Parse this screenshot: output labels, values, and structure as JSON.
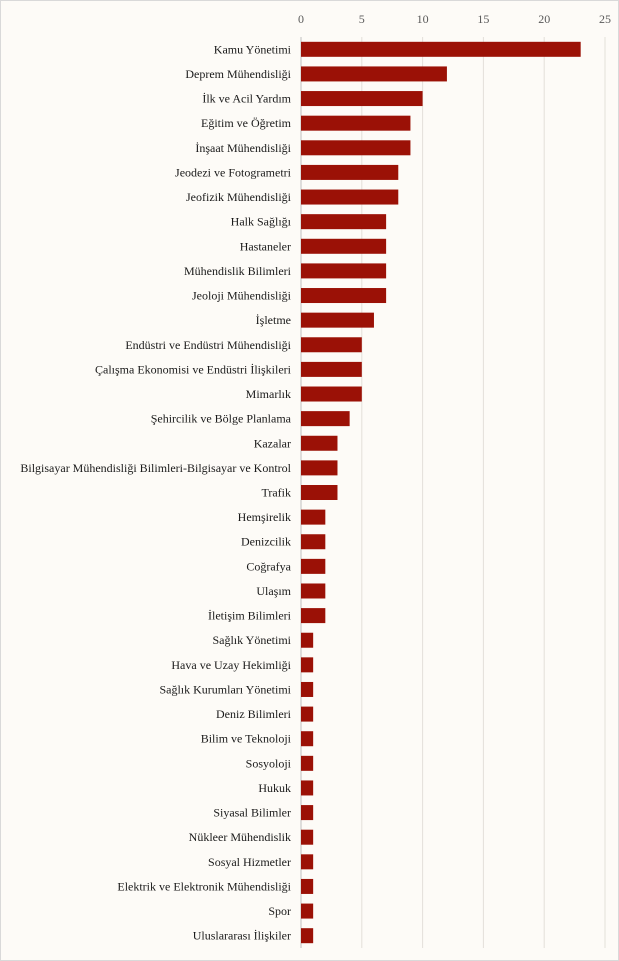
{
  "chart_data": {
    "type": "bar",
    "orientation": "horizontal",
    "x_axis_position": "top",
    "xlim": [
      0,
      25
    ],
    "xticks": [
      "0",
      "5",
      "10",
      "15",
      "20",
      "25"
    ],
    "grid": true,
    "bar_color": "#9b1106",
    "categories": [
      "Kamu Yönetimi",
      "Deprem Mühendisliği",
      "İlk ve Acil Yardım",
      "Eğitim ve Öğretim",
      "İnşaat Mühendisliği",
      "Jeodezi ve Fotogrametri",
      "Jeofizik Mühendisliği",
      "Halk Sağlığı",
      "Hastaneler",
      "Mühendislik Bilimleri",
      "Jeoloji Mühendisliği",
      "İşletme",
      "Endüstri ve Endüstri Mühendisliği",
      "Çalışma Ekonomisi ve Endüstri İlişkileri",
      "Mimarlık",
      "Şehircilik ve Bölge Planlama",
      "Kazalar",
      "Bilgisayar Mühendisliği Bilimleri-Bilgisayar ve Kontrol",
      "Trafik",
      "Hemşirelik",
      "Denizcilik",
      "Coğrafya",
      "Ulaşım",
      "İletişim Bilimleri",
      "Sağlık Yönetimi",
      "Hava ve Uzay Hekimliği",
      "Sağlık Kurumları Yönetimi",
      "Deniz Bilimleri",
      "Bilim ve Teknoloji",
      "Sosyoloji",
      "Hukuk",
      "Siyasal Bilimler",
      "Nükleer Mühendislik",
      "Sosyal Hizmetler",
      "Elektrik ve Elektronik Mühendisliği",
      "Spor",
      "Uluslararası İlişkiler"
    ],
    "values": [
      23,
      12,
      10,
      9,
      9,
      8,
      8,
      7,
      7,
      7,
      7,
      6,
      5,
      5,
      5,
      4,
      3,
      3,
      3,
      2,
      2,
      2,
      2,
      2,
      1,
      1,
      1,
      1,
      1,
      1,
      1,
      1,
      1,
      1,
      1,
      1,
      1
    ]
  }
}
